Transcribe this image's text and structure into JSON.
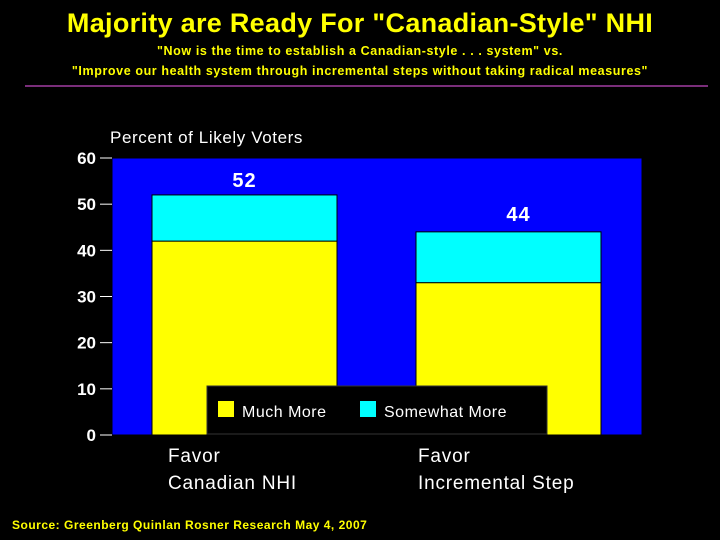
{
  "header": {
    "title": "Majority are Ready For \"Canadian-Style\" NHI",
    "subtitle_line1": "\"Now is the time to establish a Canadian-style . . . system\" vs.",
    "subtitle_line2": "\"Improve our health system through incremental steps without taking radical measures\""
  },
  "footer": {
    "source": "Source: Greenberg Quinlan Rosner Research May 4, 2007"
  },
  "chart_data": {
    "type": "bar",
    "stacked": true,
    "ylabel": "Percent of Likely Voters",
    "xlabel": "",
    "ylim": [
      0,
      60
    ],
    "yticks": [
      0,
      10,
      20,
      30,
      40,
      50,
      60
    ],
    "categories": [
      [
        "Favor",
        "Canadian NHI"
      ],
      [
        "Favor",
        "Incremental Step"
      ]
    ],
    "series": [
      {
        "name": "Much More",
        "color": "#FFFF00",
        "values": [
          42,
          33
        ]
      },
      {
        "name": "Somewhat More",
        "color": "#00FFFF",
        "values": [
          10,
          11
        ]
      }
    ],
    "totals": [
      52,
      44
    ],
    "total_labels": [
      "52",
      "44"
    ],
    "legend_position": "bottom-center",
    "plot_background": "#0000FF",
    "text_color": "#FFFFFF"
  }
}
